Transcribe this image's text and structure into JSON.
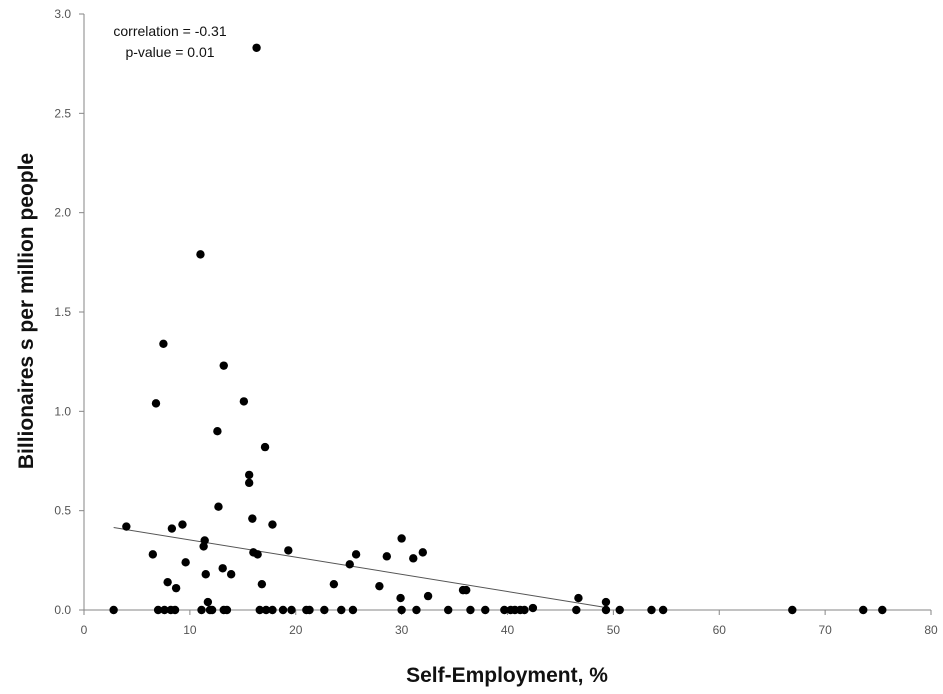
{
  "colors": {
    "axis": "#868686",
    "point": "#000000",
    "trendline": "#555555"
  },
  "chart_data": {
    "type": "scatter",
    "title": "",
    "xlabel": "Self-Employment, %",
    "ylabel": "Billionaires s per million people",
    "xlim": [
      0,
      80
    ],
    "ylim": [
      0,
      3.0
    ],
    "x_ticks": [
      "0",
      "10",
      "20",
      "30",
      "40",
      "50",
      "60",
      "70",
      "80"
    ],
    "y_ticks": [
      "0.0",
      "0.5",
      "1.0",
      "1.5",
      "2.0",
      "2.5",
      "3.0"
    ],
    "grid": false,
    "legend": "none",
    "annotations": [
      "correlation = -0.31",
      "p-value = 0.01"
    ],
    "trendline": {
      "x": [
        2.8,
        49.0
      ],
      "y": [
        0.415,
        0.015
      ]
    },
    "points": [
      {
        "x": 2.8,
        "y": 0.0
      },
      {
        "x": 4.0,
        "y": 0.42
      },
      {
        "x": 6.5,
        "y": 0.28
      },
      {
        "x": 6.8,
        "y": 1.04
      },
      {
        "x": 7.0,
        "y": 0.0
      },
      {
        "x": 7.5,
        "y": 1.34
      },
      {
        "x": 7.6,
        "y": 0.0
      },
      {
        "x": 7.9,
        "y": 0.14
      },
      {
        "x": 8.2,
        "y": 0.0
      },
      {
        "x": 8.3,
        "y": 0.41
      },
      {
        "x": 8.6,
        "y": 0.0
      },
      {
        "x": 8.7,
        "y": 0.11
      },
      {
        "x": 9.3,
        "y": 0.43
      },
      {
        "x": 9.6,
        "y": 0.24
      },
      {
        "x": 11.0,
        "y": 1.79
      },
      {
        "x": 11.1,
        "y": 0.0
      },
      {
        "x": 11.3,
        "y": 0.32
      },
      {
        "x": 11.4,
        "y": 0.35
      },
      {
        "x": 11.5,
        "y": 0.18
      },
      {
        "x": 11.7,
        "y": 0.04
      },
      {
        "x": 11.9,
        "y": 0.0
      },
      {
        "x": 12.1,
        "y": 0.0
      },
      {
        "x": 12.6,
        "y": 0.9
      },
      {
        "x": 12.7,
        "y": 0.52
      },
      {
        "x": 13.1,
        "y": 0.21
      },
      {
        "x": 13.2,
        "y": 1.23
      },
      {
        "x": 13.2,
        "y": 0.0
      },
      {
        "x": 13.5,
        "y": 0.0
      },
      {
        "x": 13.9,
        "y": 0.18
      },
      {
        "x": 15.1,
        "y": 1.05
      },
      {
        "x": 15.6,
        "y": 0.68
      },
      {
        "x": 15.6,
        "y": 0.64
      },
      {
        "x": 15.9,
        "y": 0.46
      },
      {
        "x": 16.0,
        "y": 0.29
      },
      {
        "x": 16.3,
        "y": 2.83
      },
      {
        "x": 16.4,
        "y": 0.28
      },
      {
        "x": 16.6,
        "y": 0.0
      },
      {
        "x": 16.8,
        "y": 0.13
      },
      {
        "x": 17.1,
        "y": 0.82
      },
      {
        "x": 17.2,
        "y": 0.0
      },
      {
        "x": 17.8,
        "y": 0.43
      },
      {
        "x": 17.8,
        "y": 0.0
      },
      {
        "x": 18.8,
        "y": 0.0
      },
      {
        "x": 19.3,
        "y": 0.3
      },
      {
        "x": 19.6,
        "y": 0.0
      },
      {
        "x": 21.0,
        "y": 0.0
      },
      {
        "x": 21.3,
        "y": 0.0
      },
      {
        "x": 22.7,
        "y": 0.0
      },
      {
        "x": 23.6,
        "y": 0.13
      },
      {
        "x": 24.3,
        "y": 0.0
      },
      {
        "x": 25.1,
        "y": 0.23
      },
      {
        "x": 25.4,
        "y": 0.0
      },
      {
        "x": 25.7,
        "y": 0.28
      },
      {
        "x": 27.9,
        "y": 0.12
      },
      {
        "x": 28.6,
        "y": 0.27
      },
      {
        "x": 29.9,
        "y": 0.06
      },
      {
        "x": 30.0,
        "y": 0.36
      },
      {
        "x": 30.0,
        "y": 0.0
      },
      {
        "x": 31.1,
        "y": 0.26
      },
      {
        "x": 31.4,
        "y": 0.0
      },
      {
        "x": 32.0,
        "y": 0.29
      },
      {
        "x": 32.5,
        "y": 0.07
      },
      {
        "x": 34.4,
        "y": 0.0
      },
      {
        "x": 35.8,
        "y": 0.1
      },
      {
        "x": 36.1,
        "y": 0.1
      },
      {
        "x": 36.5,
        "y": 0.0
      },
      {
        "x": 37.9,
        "y": 0.0
      },
      {
        "x": 39.7,
        "y": 0.0
      },
      {
        "x": 40.3,
        "y": 0.0
      },
      {
        "x": 40.7,
        "y": 0.0
      },
      {
        "x": 41.2,
        "y": 0.0
      },
      {
        "x": 41.6,
        "y": 0.0
      },
      {
        "x": 42.4,
        "y": 0.01
      },
      {
        "x": 46.5,
        "y": 0.0
      },
      {
        "x": 46.7,
        "y": 0.06
      },
      {
        "x": 49.3,
        "y": 0.04
      },
      {
        "x": 49.3,
        "y": 0.0
      },
      {
        "x": 50.6,
        "y": 0.0
      },
      {
        "x": 53.6,
        "y": 0.0
      },
      {
        "x": 54.7,
        "y": 0.0
      },
      {
        "x": 66.9,
        "y": 0.0
      },
      {
        "x": 73.6,
        "y": 0.0
      },
      {
        "x": 75.4,
        "y": 0.0
      }
    ]
  }
}
